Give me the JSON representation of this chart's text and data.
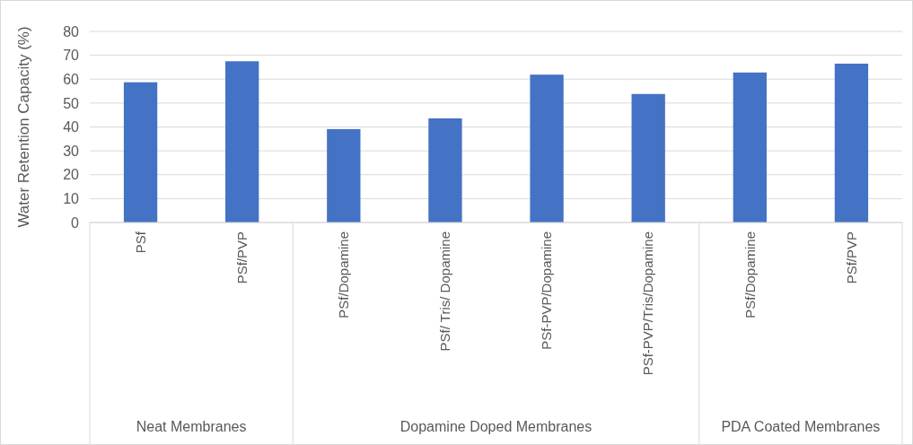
{
  "chart_data": {
    "type": "bar",
    "ylabel": "Water Retention Capacity (%)",
    "categories": [
      "PSf",
      "PSf/PVP",
      "PSf/Dopamine",
      "PSf/ Tris/ Dopamine",
      "PSf-PVP/Dopamine",
      "PSf-PVP/Tris/Dopamine",
      "PSf/Dopamine",
      "PSf/PVP"
    ],
    "values": [
      58.7,
      67.5,
      39.1,
      43.6,
      61.9,
      53.8,
      62.8,
      66.5
    ],
    "color": "#4472c4",
    "ylim": [
      0,
      80
    ],
    "yticks": [
      0,
      10,
      20,
      30,
      40,
      50,
      60,
      70,
      80
    ],
    "grid": "y",
    "annotations": [
      "Neat Membranes",
      "Dopamine Doped Membranes",
      "PDA Coated Membranes"
    ]
  }
}
